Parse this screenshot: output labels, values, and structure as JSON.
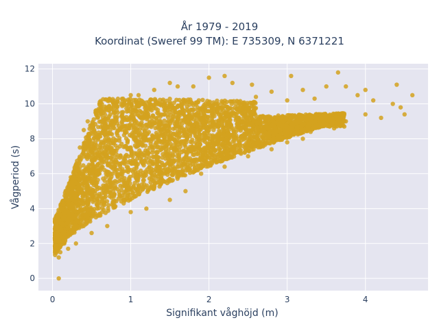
{
  "chart_data": {
    "type": "scatter",
    "title_lines": [
      "År 1979 - 2019",
      "Koordinat (Sweref 99 TM): E 735309, N 6371221"
    ],
    "xlabel": "Signifikant våghöjd (m)",
    "ylabel": "Vågperiod (s)",
    "xlim": [
      -0.18,
      4.8
    ],
    "ylim": [
      -0.7,
      12.3
    ],
    "x_ticks": [
      0,
      1,
      2,
      3,
      4
    ],
    "y_ticks": [
      0,
      2,
      4,
      6,
      8,
      10,
      12
    ],
    "grid": true,
    "legend": "none",
    "marker_color": "#d4a21e",
    "plot_bg": "#e5e5f0",
    "series": [
      {
        "values_xy": [
          [
            0.08,
            0.0
          ],
          [
            0.08,
            1.2
          ],
          [
            0.05,
            1.8
          ],
          [
            0.03,
            2.3
          ],
          [
            0.05,
            3.0
          ],
          [
            0.03,
            3.4
          ],
          [
            0.1,
            1.5
          ],
          [
            0.15,
            2.0
          ],
          [
            0.2,
            2.5
          ],
          [
            0.2,
            4.5
          ],
          [
            0.25,
            5.5
          ],
          [
            0.3,
            6.5
          ],
          [
            0.35,
            7.5
          ],
          [
            0.4,
            8.5
          ],
          [
            0.45,
            9.0
          ],
          [
            0.55,
            9.5
          ],
          [
            0.6,
            10.0
          ],
          [
            0.75,
            10.2
          ],
          [
            0.9,
            10.3
          ],
          [
            1.0,
            10.5
          ],
          [
            1.1,
            10.5
          ],
          [
            1.3,
            10.8
          ],
          [
            1.5,
            11.2
          ],
          [
            1.6,
            11.0
          ],
          [
            1.8,
            11.0
          ],
          [
            2.0,
            11.5
          ],
          [
            2.2,
            11.6
          ],
          [
            2.3,
            11.2
          ],
          [
            2.55,
            11.1
          ],
          [
            2.6,
            10.4
          ],
          [
            2.8,
            10.7
          ],
          [
            3.0,
            10.2
          ],
          [
            3.05,
            11.6
          ],
          [
            3.2,
            10.8
          ],
          [
            3.35,
            10.3
          ],
          [
            3.5,
            11.0
          ],
          [
            3.65,
            11.8
          ],
          [
            3.75,
            11.0
          ],
          [
            3.9,
            10.5
          ],
          [
            4.0,
            10.8
          ],
          [
            4.1,
            10.2
          ],
          [
            4.35,
            10.0
          ],
          [
            4.4,
            11.1
          ],
          [
            4.45,
            9.8
          ],
          [
            4.6,
            10.5
          ],
          [
            4.5,
            9.4
          ],
          [
            4.2,
            9.2
          ],
          [
            4.0,
            9.4
          ],
          [
            3.75,
            9.0
          ],
          [
            3.6,
            8.6
          ],
          [
            3.5,
            8.8
          ],
          [
            3.3,
            8.4
          ],
          [
            3.2,
            8.0
          ],
          [
            3.0,
            7.8
          ],
          [
            2.8,
            7.4
          ],
          [
            2.5,
            7.0
          ],
          [
            2.2,
            6.4
          ],
          [
            1.9,
            6.0
          ],
          [
            1.7,
            5.0
          ],
          [
            1.5,
            4.5
          ],
          [
            1.2,
            4.0
          ],
          [
            1.0,
            3.8
          ],
          [
            0.7,
            3.0
          ],
          [
            0.5,
            2.6
          ],
          [
            0.3,
            2.0
          ],
          [
            0.2,
            1.7
          ],
          [
            0.6,
            6.0
          ],
          [
            1.0,
            7.5
          ],
          [
            1.5,
            8.0
          ],
          [
            2.0,
            8.5
          ],
          [
            2.5,
            8.8
          ],
          [
            1.2,
            9.5
          ]
        ]
      }
    ]
  }
}
